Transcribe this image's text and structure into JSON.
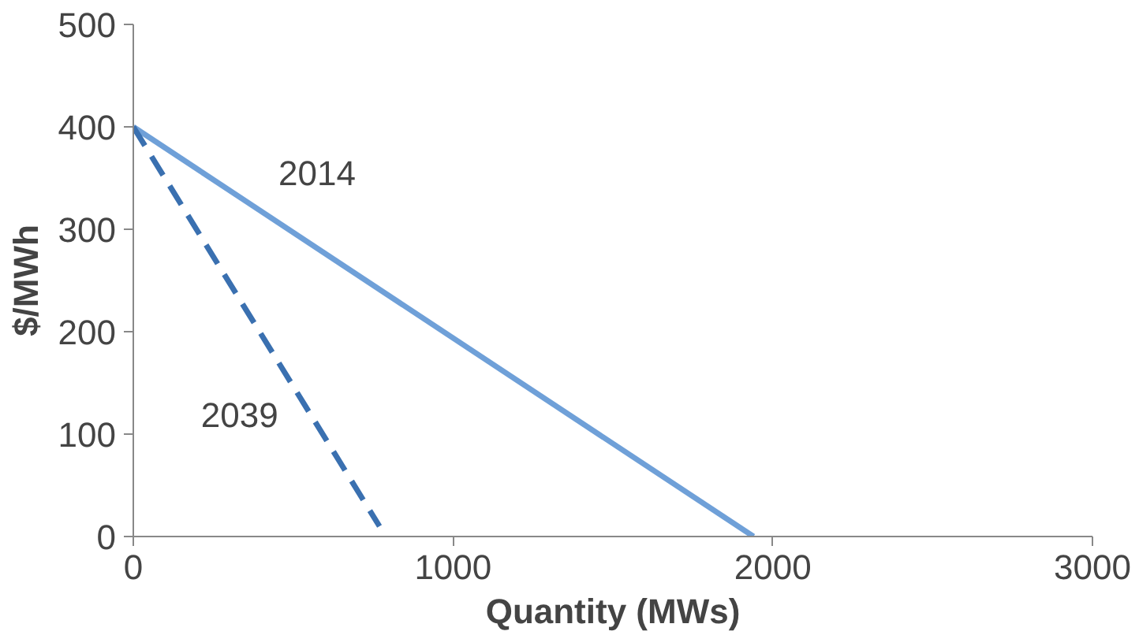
{
  "chart_data": {
    "type": "line",
    "xlabel": "Quantity (MWs)",
    "ylabel": "$/MWh",
    "xlim": [
      0,
      3000
    ],
    "xticks": [
      0,
      1000,
      2000,
      3000
    ],
    "ylim": [
      0,
      500
    ],
    "yticks": [
      0,
      100,
      200,
      300,
      400,
      500
    ],
    "grid": false,
    "legend": false,
    "marker": "none",
    "series": [
      {
        "name": "2014",
        "color": "#6fa0d8",
        "x": [
          0,
          1940
        ],
        "values": [
          400,
          0
        ],
        "line_style": "solid"
      },
      {
        "name": "2039",
        "color": "#3a70b0",
        "x": [
          0,
          770
        ],
        "values": [
          400,
          10
        ],
        "line_style": "dashed"
      }
    ]
  }
}
